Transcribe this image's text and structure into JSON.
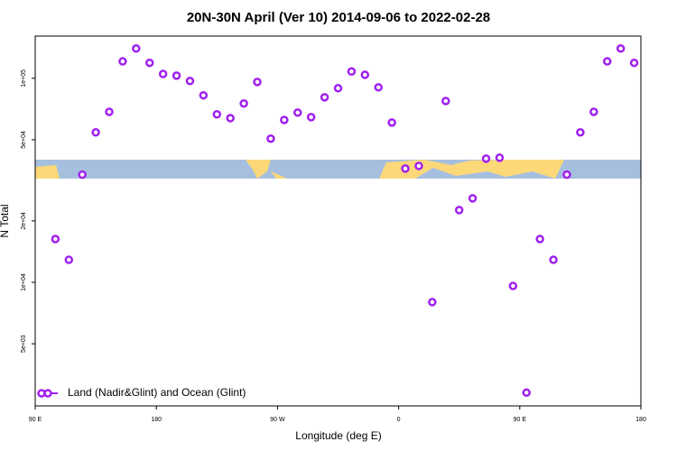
{
  "chart_data": {
    "type": "scatter",
    "title": "20N-30N April (Ver 10)   2014-09-06 to 2022-02-28",
    "xlabel": "Longitude (deg E)",
    "ylabel": "N Total",
    "xlim": [
      90,
      540
    ],
    "xticks": [
      {
        "value": 90,
        "label": "90 E"
      },
      180,
      {
        "value": 270,
        "label": "90 W"
      },
      {
        "value": 360,
        "label": "0"
      },
      {
        "value": 450,
        "label": "90 E"
      },
      {
        "value": 540,
        "label": "180"
      }
    ],
    "ylim": [
      2480,
      161000
    ],
    "ylog": true,
    "yticks": [
      {
        "value": 5000,
        "label": "5e+03"
      },
      {
        "value": 10000,
        "label": "1e+04"
      },
      {
        "value": 20000,
        "label": "2e+04"
      },
      {
        "value": 50000,
        "label": "5e+04"
      },
      {
        "value": 100000,
        "label": "1e+05"
      }
    ],
    "legend": "bottom-left",
    "series": [
      {
        "name": "Land (Nadir&Glint) and Ocean (Glint)",
        "color": "#a020f0",
        "x": [
          105,
          115,
          125,
          135,
          145,
          155,
          165,
          175,
          185,
          195,
          205,
          215,
          225,
          235,
          245,
          255,
          265,
          275,
          285,
          295,
          305,
          315,
          325,
          335,
          345,
          355,
          365,
          375,
          385,
          395,
          405,
          415,
          425,
          435,
          445,
          455,
          465,
          475,
          485,
          495,
          505,
          515,
          525,
          535
        ],
        "values": [
          16300,
          12900,
          33700,
          54300,
          68500,
          121000,
          140000,
          119000,
          105000,
          103000,
          97000,
          82500,
          66600,
          63800,
          75200,
          95900,
          50600,
          62500,
          67900,
          64500,
          80700,
          89400,
          108000,
          104000,
          90300,
          60700,
          36100,
          37200,
          8000,
          77400,
          22600,
          25800,
          40400,
          40800,
          9600,
          2880,
          16300,
          12900,
          33700,
          54300,
          68500,
          121000,
          140000,
          119000
        ]
      }
    ]
  }
}
